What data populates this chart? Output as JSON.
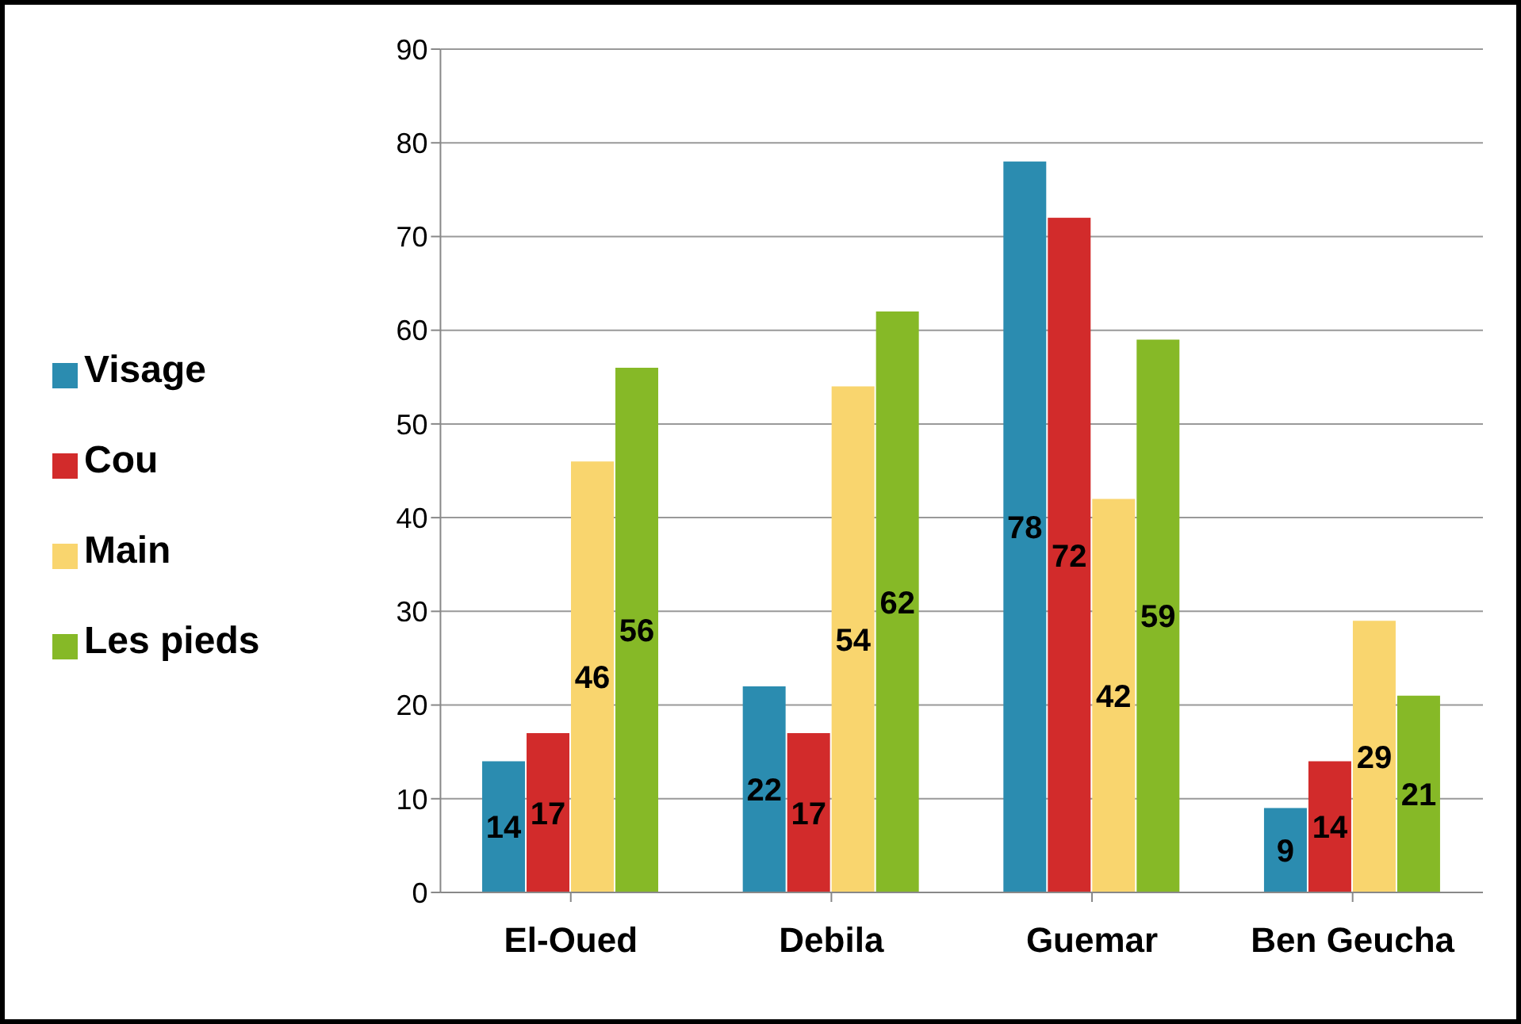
{
  "chart_data": {
    "type": "bar",
    "categories": [
      "El-Oued",
      "Debila",
      "Guemar",
      "Ben Geucha"
    ],
    "series": [
      {
        "name": "Visage",
        "color": "#2b8cb0",
        "values": [
          14,
          22,
          78,
          9
        ]
      },
      {
        "name": "Cou",
        "color": "#d22b2b",
        "values": [
          17,
          17,
          72,
          14
        ]
      },
      {
        "name": "Main",
        "color": "#f9d56e",
        "values": [
          46,
          54,
          42,
          29
        ]
      },
      {
        "name": "Les pieds",
        "color": "#86b927",
        "values": [
          56,
          62,
          59,
          21
        ]
      }
    ],
    "ylim": [
      0,
      90
    ],
    "yticks": [
      0,
      10,
      20,
      30,
      40,
      50,
      60,
      70,
      80,
      90
    ],
    "grid": "y",
    "legend": "left",
    "data_labels": true
  }
}
